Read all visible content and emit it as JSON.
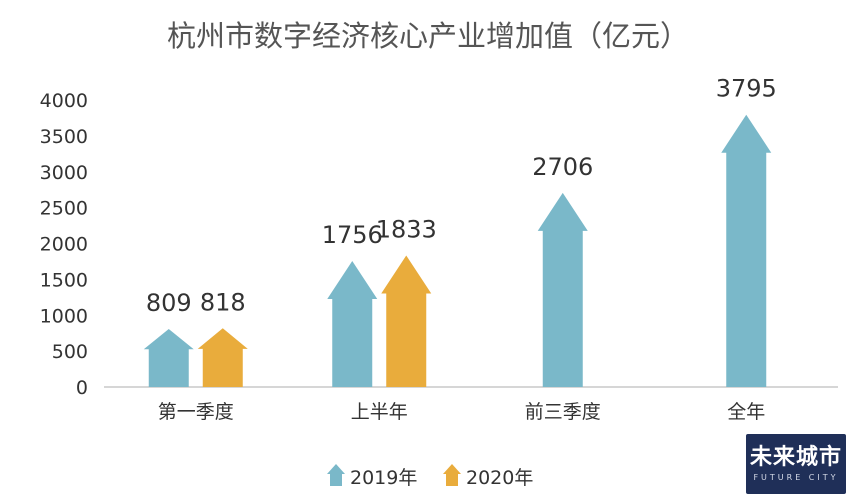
{
  "chart_data": {
    "type": "bar",
    "title": "杭州市数字经济核心产业增加值（亿元）",
    "categories": [
      "第一季度",
      "上半年",
      "前三季度",
      "全年"
    ],
    "series": [
      {
        "name": "2019年",
        "values": [
          809,
          1756,
          2706,
          3795
        ],
        "color": "#7ab8c9"
      },
      {
        "name": "2020年",
        "values": [
          818,
          1833,
          null,
          null
        ],
        "color": "#e9ac3c"
      }
    ],
    "ylim": [
      0,
      4000
    ],
    "yticks": [
      0,
      500,
      1000,
      1500,
      2000,
      2500,
      3000,
      3500,
      4000
    ],
    "grid": false,
    "legend": "bottom",
    "bar_shape": "arrow-up",
    "xlabel": "",
    "ylabel": ""
  },
  "watermark": {
    "text": "未来城市",
    "subtext": "FUTURE CITY"
  }
}
